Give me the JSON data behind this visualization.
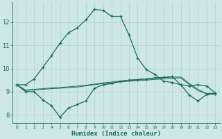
{
  "xlabel": "Humidex (Indice chaleur)",
  "xlim": [
    -0.5,
    23.5
  ],
  "ylim": [
    7.65,
    12.85
  ],
  "xticks": [
    0,
    1,
    2,
    3,
    4,
    5,
    6,
    7,
    8,
    9,
    10,
    11,
    12,
    13,
    14,
    15,
    16,
    17,
    18,
    19,
    20,
    21,
    22,
    23
  ],
  "yticks": [
    8,
    9,
    10,
    11,
    12
  ],
  "background_color": "#cde8e0",
  "grid_color": "#b8d4cc",
  "line_color": "#1a6b5a",
  "line1_x": [
    0,
    1,
    2,
    3,
    4,
    5,
    6,
    7,
    8,
    9,
    10,
    11,
    12,
    13,
    14,
    15,
    16,
    17,
    18,
    19,
    20,
    21,
    22,
    23
  ],
  "line1_y": [
    9.3,
    9.3,
    9.55,
    10.05,
    10.55,
    11.1,
    11.55,
    11.75,
    12.1,
    12.55,
    12.5,
    12.25,
    12.25,
    11.45,
    10.45,
    9.95,
    9.75,
    9.45,
    9.4,
    9.3,
    9.25,
    9.3,
    9.25,
    8.95
  ],
  "line2_x": [
    0,
    1,
    2,
    3,
    4,
    5,
    6,
    7,
    8,
    9,
    10,
    11,
    12,
    13,
    14,
    15,
    16,
    17,
    18,
    19,
    20,
    21,
    22,
    23
  ],
  "line2_y": [
    9.3,
    9.0,
    9.0,
    8.65,
    8.4,
    7.9,
    8.3,
    8.45,
    8.6,
    9.15,
    9.3,
    9.35,
    9.45,
    9.5,
    9.52,
    9.55,
    9.6,
    9.62,
    9.65,
    9.3,
    8.85,
    8.6,
    8.88,
    8.9
  ],
  "line3_x": [
    0,
    1,
    2,
    3,
    4,
    5,
    6,
    7,
    8,
    9,
    10,
    11,
    12,
    13,
    14,
    15,
    16,
    17,
    18,
    19,
    20,
    21,
    22,
    23
  ],
  "line3_y": [
    9.3,
    9.05,
    9.08,
    9.1,
    9.13,
    9.15,
    9.18,
    9.2,
    9.25,
    9.3,
    9.35,
    9.38,
    9.42,
    9.45,
    9.48,
    9.5,
    9.53,
    9.55,
    9.58,
    9.6,
    9.3,
    9.05,
    8.9,
    8.92
  ],
  "line4_x": [
    0,
    1,
    2,
    3,
    4,
    5,
    6,
    7,
    8,
    9,
    10,
    11,
    12,
    13,
    14,
    15,
    16,
    17,
    18,
    19,
    20,
    21,
    22,
    23
  ],
  "line4_y": [
    9.3,
    9.07,
    9.1,
    9.13,
    9.16,
    9.18,
    9.21,
    9.24,
    9.28,
    9.33,
    9.38,
    9.42,
    9.46,
    9.49,
    9.52,
    9.55,
    9.58,
    9.6,
    9.63,
    9.63,
    9.35,
    9.1,
    8.92,
    8.94
  ]
}
